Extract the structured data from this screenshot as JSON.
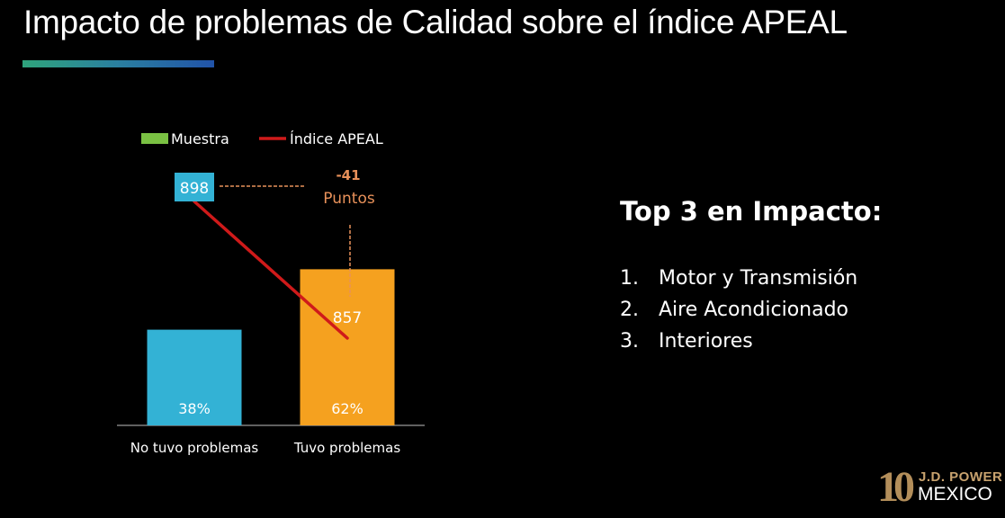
{
  "slide": {
    "title": "Impacto de problemas de Calidad sobre el índice APEAL",
    "accent_gradient": [
      "#2fa47c",
      "#2153a8"
    ]
  },
  "chart_data": {
    "type": "bar",
    "categories": [
      "No tuvo problemas",
      "Tuvo problemas"
    ],
    "series": [
      {
        "name": "Muestra",
        "kind": "bar",
        "values": [
          38,
          62
        ],
        "labels": [
          "38%",
          "62%"
        ]
      },
      {
        "name": "Índice APEAL",
        "kind": "line",
        "values": [
          898,
          857
        ],
        "labels": [
          "898",
          "857"
        ]
      }
    ],
    "bar_colors": [
      "#33b2d5",
      "#f5a11f"
    ],
    "legend_swatch_color": "#7ac143",
    "line_color": "#cf1a1a",
    "annotation": {
      "value": "-41",
      "text": "Puntos",
      "color": "#e8915a"
    },
    "legend_position": "top"
  },
  "top3": {
    "heading": "Top 3 en Impacto:",
    "items": [
      {
        "num": "1.",
        "label": "Motor y Transmisión"
      },
      {
        "num": "2.",
        "label": "Aire Acondicionado"
      },
      {
        "num": "3.",
        "label": "Interiores"
      }
    ]
  },
  "logo": {
    "number": "10",
    "brand": "J.D. POWER",
    "country": "MEXICO"
  }
}
